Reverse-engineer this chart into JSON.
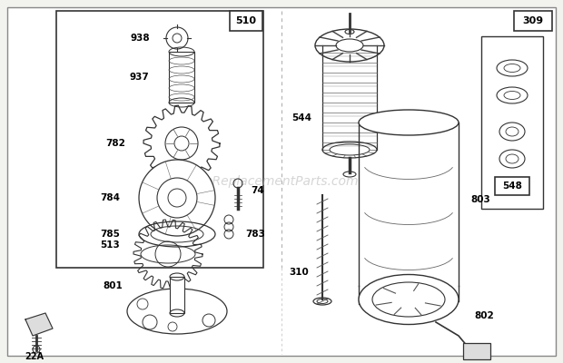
{
  "bg_color": "#f2f2ee",
  "white": "#ffffff",
  "line_color": "#333333",
  "watermark": "eReplacementParts.com",
  "fig_w": 6.2,
  "fig_h": 4.0,
  "dpi": 100
}
